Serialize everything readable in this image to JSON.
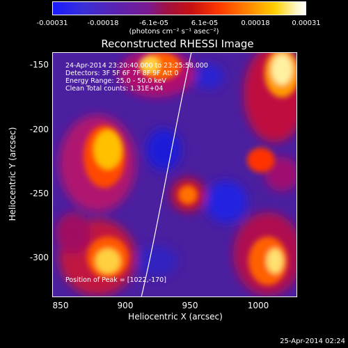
{
  "colorbar": {
    "ticks": [
      "-0.00031",
      "-0.00018",
      "-6.1e-05",
      "6.1e-05",
      "0.00018",
      "0.00031"
    ],
    "units": "(photons cm⁻² s⁻¹ asec⁻²)"
  },
  "title": "Reconstructed RHESSI Image",
  "info": {
    "time": "24-Apr-2014 23:20:40.000 to 23:25:58.000",
    "detectors": "Detectors: 3F 5F 6F 7F 8F 9F Att 0",
    "energy": "Energy Range: 25.0 - 50.0 keV",
    "clean": "Clean     Total counts: 1.31E+04"
  },
  "peak": "Position of Peak = [1022,-170]",
  "axes": {
    "xlabel": "Heliocentric X (arcsec)",
    "ylabel": "Heliocentric Y (arcsec)",
    "xticks": [
      "850",
      "900",
      "950",
      "1000"
    ],
    "yticks": [
      "-150",
      "-200",
      "-250",
      "-300"
    ]
  },
  "timestamp": "25-Apr-2014 02:24",
  "colors": {
    "background": "#000000",
    "base": "#4a1fa0"
  }
}
